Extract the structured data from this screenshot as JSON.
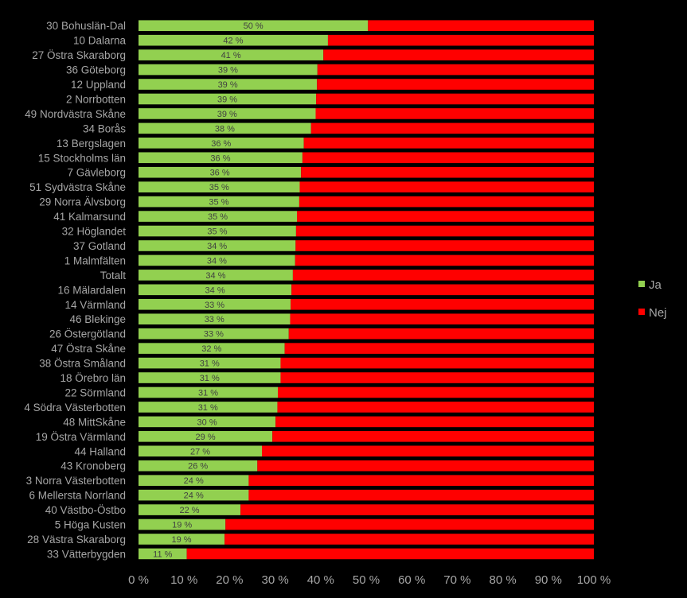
{
  "chart_data": {
    "type": "bar",
    "orientation": "horizontal",
    "stacked": "percent",
    "categories": [
      "30 Bohuslän-Dal",
      "10 Dalarna",
      "27 Östra Skaraborg",
      "36 Göteborg",
      "12 Uppland",
      "2 Norrbotten",
      "49 Nordvästra Skåne",
      "34 Borås",
      "13 Bergslagen",
      "15 Stockholms län",
      "7 Gävleborg",
      "51 Sydvästra Skåne",
      "29 Norra Älvsborg",
      "41 Kalmarsund",
      "32 Höglandet",
      "37 Gotland",
      "1 Malmfälten",
      "Totalt",
      "16 Mälardalen",
      "14 Värmland",
      "46 Blekinge",
      "26 Östergötland",
      "47 Östra Skåne",
      "38 Östra Småland",
      "18 Örebro län",
      "22 Sörmland",
      "4 Södra Västerbotten",
      "48 MittSkåne",
      "19 Östra Värmland",
      "44 Halland",
      "43 Kronoberg",
      "3 Norra Västerbotten",
      "6 Mellersta Norrland",
      "40 Västbo-Östbo",
      "5 Höga Kusten",
      "28 Västra Skaraborg",
      "33 Vätterbygden"
    ],
    "series": [
      {
        "name": "Ja",
        "color": "#92d050",
        "values": [
          50.4,
          41.6,
          40.6,
          39.3,
          39.2,
          39.0,
          38.9,
          37.9,
          36.3,
          36.0,
          35.7,
          35.4,
          35.3,
          34.8,
          34.6,
          34.5,
          34.4,
          33.9,
          33.6,
          33.4,
          33.3,
          33.0,
          32.1,
          31.2,
          31.2,
          30.6,
          30.5,
          30.1,
          29.4,
          27.1,
          26.1,
          24.2,
          24.2,
          22.4,
          19.1,
          18.9,
          10.6
        ],
        "labels": [
          "50 %",
          "42 %",
          "41 %",
          "39 %",
          "39 %",
          "39 %",
          "39 %",
          "38 %",
          "36 %",
          "36 %",
          "36 %",
          "35 %",
          "35 %",
          "35 %",
          "35 %",
          "34 %",
          "34 %",
          "34 %",
          "34 %",
          "33 %",
          "33 %",
          "33 %",
          "32 %",
          "31 %",
          "31 %",
          "31 %",
          "31 %",
          "30 %",
          "29 %",
          "27 %",
          "26 %",
          "24 %",
          "24 %",
          "22 %",
          "19 %",
          "19 %",
          "11 %"
        ]
      },
      {
        "name": "Nej",
        "color": "#ff0000",
        "values": [
          49.6,
          58.4,
          59.4,
          60.7,
          60.8,
          61.0,
          61.1,
          62.1,
          63.7,
          64.0,
          64.3,
          64.6,
          64.7,
          65.2,
          65.4,
          65.5,
          65.6,
          66.1,
          66.4,
          66.6,
          66.7,
          67.0,
          67.9,
          68.8,
          68.8,
          69.4,
          69.5,
          69.9,
          70.6,
          72.9,
          73.9,
          75.8,
          75.8,
          77.6,
          80.9,
          81.1,
          89.4
        ]
      }
    ],
    "xlim": [
      0,
      100
    ],
    "xticks": [
      "0 %",
      "10 %",
      "20 %",
      "30 %",
      "40 %",
      "50 %",
      "60 %",
      "70 %",
      "80 %",
      "90 %",
      "100 %"
    ],
    "legend": "right",
    "grid": false,
    "background": "#000000"
  }
}
